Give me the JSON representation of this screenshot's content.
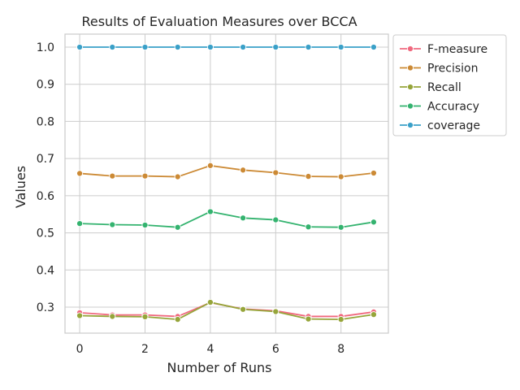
{
  "chart_data": {
    "type": "line",
    "title": "Results of Evaluation Measures over BCCA",
    "xlabel": "Number of Runs",
    "ylabel": "Values",
    "x": [
      0,
      1,
      2,
      3,
      4,
      5,
      6,
      7,
      8,
      9
    ],
    "xticks": [
      "0",
      "2",
      "4",
      "6",
      "8"
    ],
    "yticks": [
      "0.3",
      "0.4",
      "0.5",
      "0.6",
      "0.7",
      "0.8",
      "0.9",
      "1.0"
    ],
    "xlim": [
      -0.45,
      9.45
    ],
    "ylim": [
      0.23,
      1.035
    ],
    "grid": true,
    "legend_position": "outside-upper-right",
    "series": [
      {
        "name": "F-measure",
        "color": "#f0697f",
        "values": [
          0.285,
          0.279,
          0.279,
          0.275,
          0.312,
          0.295,
          0.29,
          0.275,
          0.275,
          0.287
        ]
      },
      {
        "name": "Precision",
        "color": "#cc8a35",
        "values": [
          0.66,
          0.653,
          0.653,
          0.651,
          0.681,
          0.669,
          0.662,
          0.652,
          0.651,
          0.661
        ]
      },
      {
        "name": "Recall",
        "color": "#96a53a",
        "values": [
          0.277,
          0.275,
          0.274,
          0.267,
          0.313,
          0.294,
          0.288,
          0.268,
          0.267,
          0.28
        ]
      },
      {
        "name": "Accuracy",
        "color": "#34b36f",
        "values": [
          0.525,
          0.522,
          0.521,
          0.515,
          0.557,
          0.54,
          0.535,
          0.516,
          0.515,
          0.529
        ]
      },
      {
        "name": "coverage",
        "color": "#3aa0c8",
        "values": [
          1.0,
          1.0,
          1.0,
          1.0,
          1.0,
          1.0,
          1.0,
          1.0,
          1.0,
          1.0
        ]
      }
    ]
  }
}
